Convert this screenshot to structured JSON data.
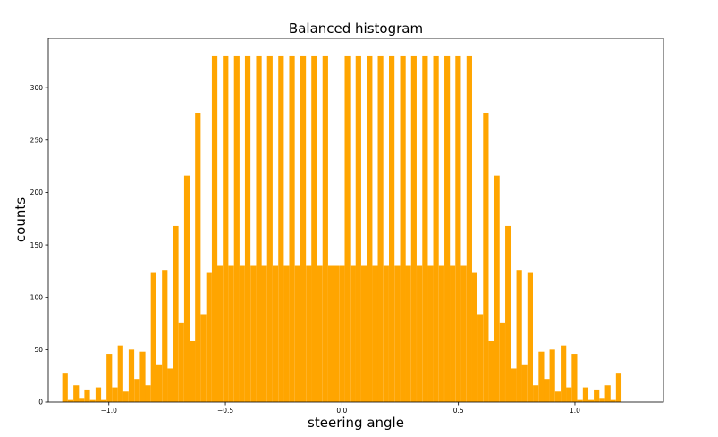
{
  "chart_data": {
    "type": "bar",
    "title": "Balanced histogram",
    "xlabel": "steering angle",
    "ylabel": "counts",
    "xlim": [
      -1.26,
      1.38
    ],
    "ylim": [
      0,
      347
    ],
    "xticks": [
      -1.0,
      -0.5,
      0.0,
      0.5,
      1.0
    ],
    "xtick_labels": [
      "−1.0",
      "−0.5",
      "0.0",
      "0.5",
      "1.0"
    ],
    "yticks": [
      0,
      50,
      100,
      150,
      200,
      250,
      300
    ],
    "ytick_labels": [
      "0",
      "50",
      "100",
      "150",
      "200",
      "250",
      "300"
    ],
    "bar_color": "#ffa500",
    "bin_width": 0.02376,
    "bins_x_start": [
      -1.2,
      -1.176,
      -1.152,
      -1.129,
      -1.105,
      -1.081,
      -1.057,
      -1.034,
      -1.01,
      -0.986,
      -0.962,
      -0.939,
      -0.915,
      -0.891,
      -0.867,
      -0.844,
      -0.82,
      -0.796,
      -0.772,
      -0.749,
      -0.725,
      -0.701,
      -0.677,
      -0.653,
      -0.63,
      -0.606,
      -0.582,
      -0.558,
      -0.535,
      -0.511,
      -0.487,
      -0.463,
      -0.44,
      -0.416,
      -0.392,
      -0.368,
      -0.345,
      -0.321,
      -0.297,
      -0.273,
      -0.25,
      -0.226,
      -0.202,
      -0.178,
      -0.154,
      -0.131,
      -0.107,
      -0.083,
      -0.059,
      -0.036,
      -0.012,
      0.012,
      0.036,
      0.059,
      0.083,
      0.107,
      0.131,
      0.154,
      0.178,
      0.202,
      0.226,
      0.25,
      0.273,
      0.297,
      0.321,
      0.345,
      0.368,
      0.392,
      0.416,
      0.44,
      0.463,
      0.487,
      0.511,
      0.535,
      0.558,
      0.582,
      0.606,
      0.63,
      0.653,
      0.677,
      0.701,
      0.725,
      0.749,
      0.772,
      0.796,
      0.82,
      0.844,
      0.867,
      0.891,
      0.915,
      0.939,
      0.962,
      0.986,
      1.01,
      1.034,
      1.057,
      1.081,
      1.105,
      1.129,
      1.152,
      1.176
    ],
    "values": [
      28,
      2,
      16,
      4,
      12,
      2,
      14,
      2,
      46,
      14,
      54,
      10,
      50,
      22,
      48,
      16,
      124,
      36,
      126,
      32,
      168,
      76,
      216,
      58,
      276,
      84,
      124,
      330,
      130,
      330,
      130,
      330,
      130,
      330,
      130,
      330,
      130,
      330,
      130,
      330,
      130,
      330,
      130,
      330,
      130,
      330,
      130,
      330,
      130,
      130,
      130,
      330,
      130,
      330,
      130,
      330,
      130,
      330,
      130,
      330,
      130,
      330,
      130,
      330,
      130,
      330,
      130,
      330,
      130,
      330,
      130,
      330,
      130,
      330,
      124,
      84,
      276,
      58,
      216,
      76,
      168,
      32,
      126,
      36,
      124,
      16,
      48,
      22,
      50,
      10,
      54,
      14,
      46,
      2,
      14,
      2,
      12,
      4,
      16,
      2,
      28
    ]
  }
}
